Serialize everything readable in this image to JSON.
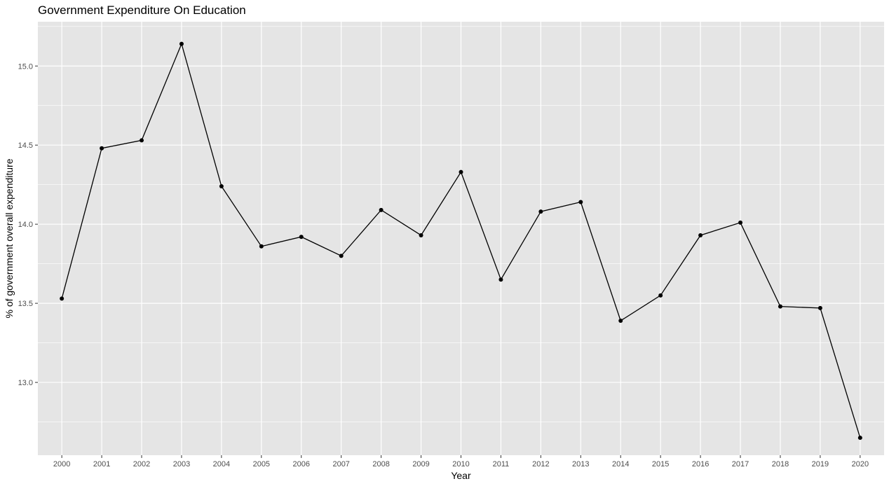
{
  "chart_data": {
    "type": "line",
    "title": "Government Expenditure On Education",
    "xlabel": "Year",
    "ylabel": "% of government overall expenditure",
    "x": [
      "2000",
      "2001",
      "2002",
      "2003",
      "2004",
      "2005",
      "2006",
      "2007",
      "2008",
      "2009",
      "2010",
      "2011",
      "2012",
      "2013",
      "2014",
      "2015",
      "2016",
      "2017",
      "2018",
      "2019",
      "2020"
    ],
    "series": [
      {
        "values": [
          13.53,
          14.48,
          14.53,
          15.14,
          14.24,
          13.86,
          13.92,
          13.8,
          14.09,
          13.93,
          14.33,
          13.65,
          14.08,
          14.14,
          13.39,
          13.55,
          13.93,
          14.01,
          13.48,
          13.47,
          12.65
        ]
      }
    ],
    "ylim": [
      12.54,
      15.28
    ],
    "yticks": [
      "13.0",
      "13.5",
      "14.0",
      "14.5",
      "15.0"
    ],
    "grid": true,
    "legend": "none",
    "colors": {
      "panel": "#e5e5e5",
      "grid": "#ffffff",
      "line": "#000000",
      "point": "#000000"
    }
  }
}
